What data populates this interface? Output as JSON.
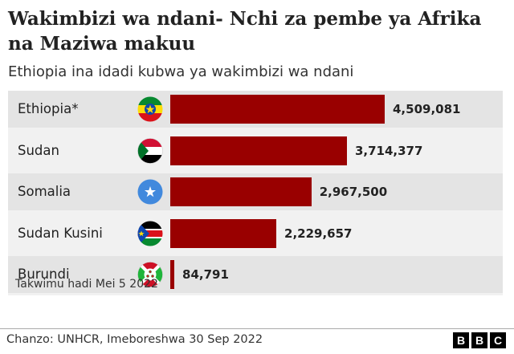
{
  "chart_data": {
    "type": "bar",
    "orientation": "horizontal",
    "title": "Wakimbizi wa ndani- Nchi za pembe ya Afrika na Maziwa makuu",
    "subtitle": "Ethiopia ina idadi kubwa ya wakimbizi wa ndani",
    "categories": [
      "Ethiopia*",
      "Sudan",
      "Somalia",
      "Sudan Kusini",
      "Burundi"
    ],
    "values": [
      4509081,
      3714377,
      2967500,
      2229657,
      84791
    ],
    "value_labels": [
      "4,509,081",
      "3,714,377",
      "2,967,500",
      "2,229,657",
      "84,791"
    ],
    "bar_color": "#990000",
    "note": "Takwimu hadi Mei 5 2022",
    "source": "Chanzo: UNHCR, Imeboreshwa 30 Sep 2022",
    "grid": false,
    "legend": "none"
  },
  "flags": [
    "ethiopia-flag-icon",
    "sudan-flag-icon",
    "somalia-flag-icon",
    "south-sudan-flag-icon",
    "burundi-flag-icon"
  ],
  "logo": {
    "letters": [
      "B",
      "B",
      "C"
    ]
  }
}
